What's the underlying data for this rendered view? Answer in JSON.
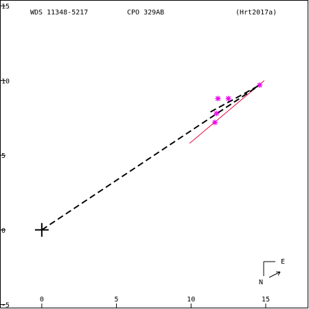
{
  "header": {
    "left": "WDS 11348-5217",
    "center": "CPO 329AB",
    "right": "(Hrt2017a)"
  },
  "compass": {
    "east_label": "E",
    "north_label": "N"
  },
  "colors": {
    "frame": "#000000",
    "orbit_line": "#e8003c",
    "observations": "#ee00ee",
    "dashed": "#000000"
  },
  "chart_data": {
    "type": "scatter",
    "title": "",
    "xlabel": "",
    "ylabel": "",
    "xlim": [
      -2.8,
      17.9
    ],
    "ylim": [
      -5.3,
      15.4
    ],
    "x_ticks": [
      0,
      5,
      10,
      15
    ],
    "y_ticks": [
      -5,
      0,
      5,
      10,
      15
    ],
    "x_tick_labels": [
      "0",
      "5",
      "10",
      "15"
    ],
    "y_tick_labels": [
      "-5",
      "0",
      "5",
      "10",
      "15"
    ],
    "grid": false,
    "primary_marker": {
      "x": 0,
      "y": 0,
      "symbol": "plus"
    },
    "series": [
      {
        "kind": "observations",
        "symbol": "asterisk",
        "points": [
          {
            "x": 11.8,
            "y": 8.8
          },
          {
            "x": 12.5,
            "y": 8.8
          },
          {
            "x": 11.7,
            "y": 7.8
          },
          {
            "x": 11.6,
            "y": 7.2
          },
          {
            "x": 14.6,
            "y": 9.7
          }
        ]
      },
      {
        "kind": "fit-line",
        "style": "solid",
        "points": [
          {
            "x": 9.9,
            "y": 5.8
          },
          {
            "x": 14.9,
            "y": 10.0
          }
        ]
      },
      {
        "kind": "connector",
        "style": "dashed",
        "points": [
          {
            "x": 0,
            "y": 0
          },
          {
            "x": 14.6,
            "y": 9.7
          }
        ]
      },
      {
        "kind": "connector",
        "style": "dashed",
        "points": [
          {
            "x": 11.3,
            "y": 7.9
          },
          {
            "x": 14.6,
            "y": 9.7
          }
        ]
      }
    ]
  }
}
